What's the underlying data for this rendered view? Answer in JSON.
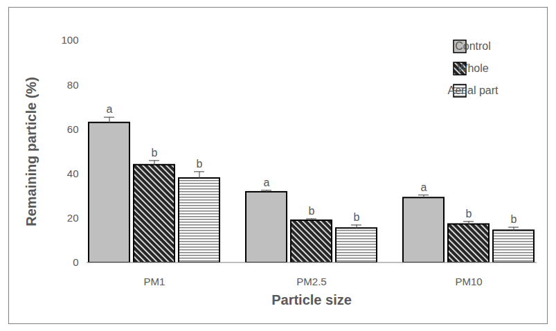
{
  "chart_data": {
    "type": "bar",
    "x_label": "Particle size",
    "y_label": "Remaining particle (%)",
    "categories": [
      "PM1",
      "PM2.5",
      "PM10"
    ],
    "series": [
      {
        "name": "Control",
        "color": "#bfbfbf",
        "values": [
          63,
          31.8,
          29.2
        ],
        "errors": [
          2.5,
          0.8,
          1.3
        ],
        "letters": [
          "a",
          "a",
          "a"
        ]
      },
      {
        "name": "Whole",
        "color": "#262626",
        "values": [
          44,
          19,
          17.3
        ],
        "errors": [
          2,
          0.8,
          1.3
        ],
        "letters": [
          "b",
          "b",
          "b"
        ]
      },
      {
        "name": "Aerial part",
        "color": "#808080",
        "values": [
          38,
          15.5,
          14.5
        ],
        "errors": [
          3,
          1.5,
          1.5
        ],
        "letters": [
          "b",
          "b",
          "b"
        ]
      }
    ],
    "ylim": [
      0,
      100
    ],
    "yticks": [
      0,
      20,
      40,
      60,
      80,
      100
    ],
    "grid": false,
    "legend": "top-right"
  }
}
